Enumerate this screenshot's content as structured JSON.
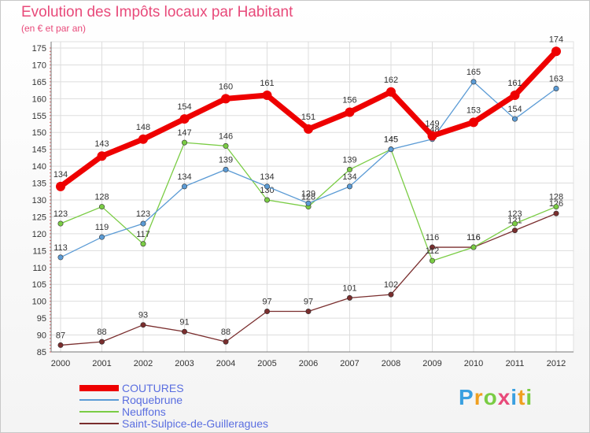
{
  "header": {
    "title": "Evolution des Impôts locaux par Habitant",
    "subtitle": "(en € et par an)"
  },
  "brand": {
    "text": "Proxiti"
  },
  "chart_data": {
    "type": "line",
    "title": "Evolution des Impôts locaux par Habitant",
    "subtitle": "(en € et par an)",
    "xlabel": "",
    "ylabel": "",
    "categories": [
      "2000",
      "2001",
      "2002",
      "2003",
      "2004",
      "2005",
      "2006",
      "2007",
      "2008",
      "2009",
      "2010",
      "2011",
      "2012"
    ],
    "yticks": [
      85,
      90,
      95,
      100,
      105,
      110,
      115,
      120,
      125,
      130,
      135,
      140,
      145,
      150,
      155,
      160,
      165,
      170,
      175
    ],
    "ylim": [
      85,
      175
    ],
    "grid": true,
    "legend_position": "bottom-left",
    "series": [
      {
        "name": "COUTURES",
        "color": "#ee0000",
        "values": [
          134,
          143,
          148,
          154,
          160,
          161,
          151,
          156,
          162,
          149,
          153,
          161,
          174
        ]
      },
      {
        "name": "Roquebrune",
        "color": "#5b9bd5",
        "values": [
          113,
          119,
          123,
          134,
          139,
          134,
          129,
          134,
          145,
          148,
          165,
          154,
          163
        ]
      },
      {
        "name": "Neuffons",
        "color": "#7acc44",
        "values": [
          123,
          128,
          117,
          147,
          146,
          130,
          128,
          139,
          145,
          112,
          116,
          123,
          128
        ]
      },
      {
        "name": "Saint-Sulpice-de-Guilleragues",
        "color": "#7a2e2e",
        "values": [
          87,
          88,
          93,
          91,
          88,
          97,
          97,
          101,
          102,
          116,
          116,
          121,
          126
        ]
      }
    ]
  }
}
